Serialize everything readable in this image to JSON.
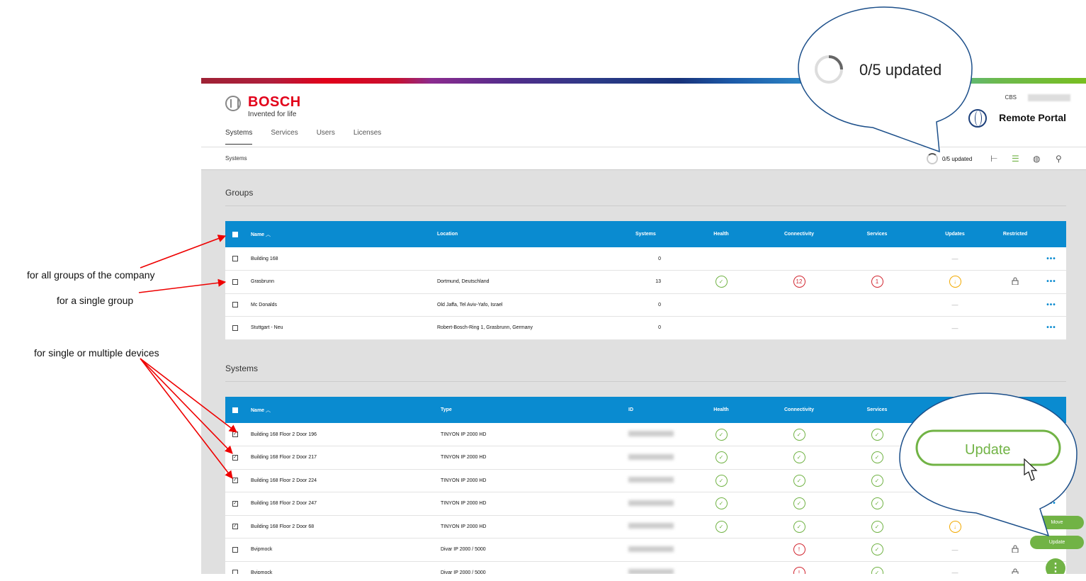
{
  "annotations": {
    "all_groups": "for all groups of the company",
    "single_group": "for a single group",
    "devices": "for single or multiple devices"
  },
  "header": {
    "brand": "BOSCH",
    "tagline": "Invented for life",
    "company": "CBS",
    "portal_title": "Remote Portal",
    "nav": [
      "Systems",
      "Services",
      "Users",
      "Licenses"
    ]
  },
  "breadcrumb": "Systems",
  "status": {
    "updated_text": "0/5 updated"
  },
  "callout": {
    "updated_text": "0/5 updated",
    "update_button": "Update"
  },
  "groups": {
    "title": "Groups",
    "columns": [
      "Name",
      "Location",
      "Systems",
      "Health",
      "Connectivity",
      "Services",
      "Updates",
      "Restricted"
    ],
    "rows": [
      {
        "name": "Building 168",
        "location": "",
        "systems": "0",
        "health": "",
        "connectivity": "",
        "services": "",
        "updates": "—",
        "restricted": "",
        "more": "•••"
      },
      {
        "name": "Grasbrunn",
        "location": "Dortmund, Deutschland",
        "systems": "13",
        "health": "✓",
        "connectivity": "12",
        "services": "1",
        "updates": "↓",
        "restricted": "lock",
        "more": "•••"
      },
      {
        "name": "Mc Donalds",
        "location": "Old Jaffa, Tel Aviv-Yafo, Israel",
        "systems": "0",
        "health": "",
        "connectivity": "",
        "services": "",
        "updates": "—",
        "restricted": "",
        "more": "•••"
      },
      {
        "name": "Stuttgart - Neu",
        "location": "Robert-Bosch-Ring 1, Grasbrunn, Germany",
        "systems": "0",
        "health": "",
        "connectivity": "",
        "services": "",
        "updates": "—",
        "restricted": "",
        "more": "•••"
      }
    ]
  },
  "systems": {
    "title": "Systems",
    "columns": [
      "Name",
      "Type",
      "ID",
      "Health",
      "Connectivity",
      "Services"
    ],
    "rows": [
      {
        "name": "Building 168 Floor 2 Door 196",
        "type": "TINYON IP 2000 HD",
        "checked": true,
        "health": "✓",
        "connectivity": "✓",
        "services": "✓",
        "updates": "",
        "restricted": "",
        "more": ""
      },
      {
        "name": "Building 168 Floor 2 Door 217",
        "type": "TINYON IP 2000 HD",
        "checked": true,
        "health": "✓",
        "connectivity": "✓",
        "services": "✓",
        "updates": "",
        "restricted": "",
        "more": ""
      },
      {
        "name": "Building 168 Floor 2 Door 224",
        "type": "TINYON IP 2000 HD",
        "checked": true,
        "health": "✓",
        "connectivity": "✓",
        "services": "✓",
        "updates": "",
        "restricted": "",
        "more": ""
      },
      {
        "name": "Building 168 Floor 2 Door 247",
        "type": "TINYON IP 2000 HD",
        "checked": true,
        "health": "✓",
        "connectivity": "✓",
        "services": "✓",
        "updates": "",
        "restricted": "",
        "more": "•••"
      },
      {
        "name": "Building 168 Floor 2 Door 68",
        "type": "TINYON IP 2000 HD",
        "checked": true,
        "health": "✓",
        "connectivity": "✓",
        "services": "✓",
        "updates": "↓",
        "restricted": "",
        "more": ""
      },
      {
        "name": "Bvipmock",
        "type": "Divar IP 2000 / 5000",
        "checked": false,
        "health": "",
        "connectivity": "!",
        "services": "✓",
        "updates": "—",
        "restricted": "lock",
        "more": ""
      },
      {
        "name": "Bvipmock",
        "type": "Divar IP 2000 / 5000",
        "checked": false,
        "health": "",
        "connectivity": "!",
        "services": "✓",
        "updates": "—",
        "restricted": "lock",
        "more": ""
      }
    ]
  },
  "fab": {
    "move": "Move",
    "update": "Update",
    "main": "⋮"
  },
  "colors": {
    "accent": "#0a8bd0",
    "ok": "#71b345",
    "error": "#d22630",
    "warning": "#f2a900",
    "brand": "#e2001a"
  }
}
